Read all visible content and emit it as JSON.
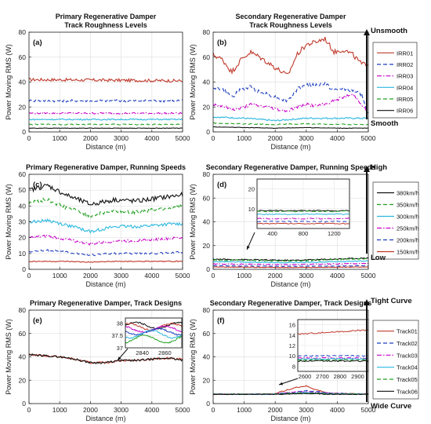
{
  "figure": {
    "ylabel": "Power Moving RMS (W)",
    "xlabel": "Distance (m)"
  },
  "chart_data": [
    {
      "type": "line",
      "panel_label": "(a)",
      "title": [
        "Primary Regenerative Damper",
        "Track Roughness Levels"
      ],
      "xlabel": "Distance (m)",
      "ylabel": "Power Moving RMS (W)",
      "xlim": [
        0,
        5000
      ],
      "ylim": [
        0,
        80
      ],
      "xticks": [
        0,
        1000,
        2000,
        3000,
        4000,
        5000
      ],
      "yticks": [
        0,
        20,
        40,
        60,
        80
      ],
      "grid": true,
      "series": [
        {
          "ref": "IRR01",
          "color": "#c0392b",
          "dash": "solid",
          "mean": 42,
          "jitter": 1.2,
          "x": [
            0,
            5000
          ],
          "y": [
            42,
            41
          ]
        },
        {
          "ref": "IRR02",
          "color": "#1f3fbf",
          "dash": "dash",
          "mean": 25,
          "jitter": 1.0,
          "x": [
            0,
            5000
          ],
          "y": [
            25,
            25
          ]
        },
        {
          "ref": "IRR03",
          "color": "#c800c8",
          "dash": "dashdot",
          "mean": 15,
          "jitter": 0.6,
          "x": [
            0,
            5000
          ],
          "y": [
            15,
            15
          ]
        },
        {
          "ref": "IRR04",
          "color": "#2ab7e0",
          "dash": "solid",
          "mean": 10,
          "jitter": 0.5,
          "x": [
            0,
            5000
          ],
          "y": [
            10,
            10
          ]
        },
        {
          "ref": "IRR05",
          "color": "#20a020",
          "dash": "dash",
          "mean": 6,
          "jitter": 0.4,
          "x": [
            0,
            5000
          ],
          "y": [
            6,
            6
          ]
        },
        {
          "ref": "IRR06",
          "color": "#111111",
          "dash": "solid",
          "mean": 3,
          "jitter": 0.2,
          "x": [
            0,
            5000
          ],
          "y": [
            3,
            3
          ]
        }
      ]
    },
    {
      "type": "line",
      "panel_label": "(b)",
      "title": [
        "Secondary Regenerative Damper",
        "Track Roughness Levels"
      ],
      "xlabel": "Distance (m)",
      "ylabel": "Power Moving RMS (W)",
      "xlim": [
        0,
        5000
      ],
      "ylim": [
        0,
        80
      ],
      "xticks": [
        0,
        1000,
        2000,
        3000,
        4000,
        5000
      ],
      "yticks": [
        0,
        20,
        40,
        60,
        80
      ],
      "grid": true,
      "series": [
        {
          "name": "IRR01",
          "color": "#c0392b",
          "dash": "solid",
          "jitter": 2.0,
          "x": [
            0,
            300,
            600,
            900,
            1200,
            1500,
            1800,
            2100,
            2400,
            2700,
            3000,
            3300,
            3600,
            3900,
            4200,
            4500,
            4800,
            5000
          ],
          "y": [
            62,
            58,
            48,
            58,
            64,
            60,
            55,
            50,
            45,
            62,
            70,
            72,
            75,
            64,
            66,
            62,
            54,
            55
          ]
        },
        {
          "name": "IRR02",
          "color": "#1f3fbf",
          "dash": "dash",
          "jitter": 1.5,
          "x": [
            0,
            300,
            600,
            900,
            1200,
            1500,
            1800,
            2100,
            2400,
            2700,
            3000,
            3300,
            3600,
            3900,
            4200,
            4500,
            4800,
            5000
          ],
          "y": [
            36,
            34,
            28,
            34,
            36,
            32,
            30,
            27,
            25,
            34,
            38,
            37,
            39,
            33,
            35,
            33,
            30,
            14
          ]
        },
        {
          "name": "IRR03",
          "color": "#c800c8",
          "dash": "dashdot",
          "jitter": 1.2,
          "x": [
            0,
            300,
            600,
            900,
            1200,
            1500,
            1800,
            2100,
            2400,
            2700,
            3000,
            3300,
            3600,
            3900,
            4200,
            4500,
            4800,
            5000
          ],
          "y": [
            22,
            21,
            18,
            19,
            22,
            21,
            20,
            18,
            17,
            20,
            22,
            21,
            22,
            25,
            28,
            30,
            22,
            14
          ]
        },
        {
          "name": "IRR04",
          "color": "#2ab7e0",
          "dash": "solid",
          "jitter": 0.6,
          "x": [
            0,
            1000,
            2000,
            3000,
            4000,
            5000
          ],
          "y": [
            12,
            11,
            9,
            11,
            11,
            11
          ]
        },
        {
          "name": "IRR05",
          "color": "#20a020",
          "dash": "dash",
          "jitter": 0.4,
          "x": [
            0,
            1000,
            2000,
            3000,
            4000,
            5000
          ],
          "y": [
            7,
            6.5,
            6,
            6.5,
            6,
            6
          ]
        },
        {
          "name": "IRR06",
          "color": "#111111",
          "dash": "solid",
          "jitter": 0.2,
          "x": [
            0,
            1000,
            2000,
            3000,
            4000,
            5000
          ],
          "y": [
            4,
            3.5,
            3,
            3.5,
            3,
            3
          ]
        }
      ],
      "scale_labels": {
        "top": "Unsmooth",
        "bottom": "Smooth"
      }
    },
    {
      "type": "line",
      "panel_label": "(c)",
      "title": [
        "Primary Regenerative Damper, Running Speeds"
      ],
      "xlabel": "Distance (m)",
      "ylabel": "Power Moving RMS (W)",
      "xlim": [
        0,
        5000
      ],
      "ylim": [
        0,
        60
      ],
      "xticks": [
        0,
        1000,
        2000,
        3000,
        4000,
        5000
      ],
      "yticks": [
        0,
        10,
        20,
        30,
        40,
        50,
        60
      ],
      "grid": true,
      "series": [
        {
          "ref": "380km/h",
          "color": "#111111",
          "dash": "solid",
          "jitter": 1.5,
          "x": [
            0,
            600,
            1200,
            2000,
            2800,
            3500,
            4200,
            5000
          ],
          "y": [
            50,
            53,
            47,
            41,
            44,
            43,
            45,
            47
          ]
        },
        {
          "ref": "350km/h",
          "color": "#20a020",
          "dash": "dash",
          "jitter": 1.3,
          "x": [
            0,
            600,
            1200,
            2000,
            2800,
            3500,
            4200,
            5000
          ],
          "y": [
            42,
            44,
            39,
            34,
            37,
            36,
            38,
            40
          ]
        },
        {
          "ref": "300km/h",
          "color": "#2ab7e0",
          "dash": "solid",
          "jitter": 1.0,
          "x": [
            0,
            600,
            1200,
            2000,
            2800,
            3500,
            4200,
            5000
          ],
          "y": [
            30,
            31,
            28,
            24,
            27,
            27,
            28,
            29
          ]
        },
        {
          "ref": "250km/h",
          "color": "#c800c8",
          "dash": "dashdot",
          "jitter": 0.8,
          "x": [
            0,
            600,
            1200,
            2000,
            2800,
            3500,
            4200,
            5000
          ],
          "y": [
            20,
            21,
            19,
            16,
            18,
            18,
            19,
            20
          ]
        },
        {
          "ref": "200km/h",
          "color": "#1f3fbf",
          "dash": "dash",
          "jitter": 0.6,
          "x": [
            0,
            600,
            1200,
            2000,
            2800,
            3500,
            4200,
            5000
          ],
          "y": [
            11,
            12,
            11,
            9,
            10,
            10,
            10,
            11
          ]
        },
        {
          "ref": "150km/h",
          "color": "#c0392b",
          "dash": "solid",
          "jitter": 0.3,
          "x": [
            0,
            600,
            1200,
            2000,
            2800,
            3500,
            4200,
            5000
          ],
          "y": [
            5,
            5,
            5,
            4.5,
            5,
            5,
            5,
            5
          ]
        }
      ]
    },
    {
      "type": "line",
      "panel_label": "(d)",
      "title": [
        "Secondary Regenerative Damper, Running Speeds"
      ],
      "xlabel": "Distance (m)",
      "ylabel": "Power Moving RMS (W)",
      "xlim": [
        0,
        5000
      ],
      "ylim": [
        0,
        80
      ],
      "xticks": [
        0,
        1000,
        2000,
        3000,
        4000,
        5000
      ],
      "yticks": [
        0,
        20,
        40,
        60,
        80
      ],
      "grid": true,
      "series": [
        {
          "name": "380km/h",
          "color": "#111111",
          "dash": "solid",
          "jitter": 0.5,
          "x": [
            0,
            2500,
            5000
          ],
          "y": [
            8.5,
            7.5,
            9.5
          ]
        },
        {
          "name": "350km/h",
          "color": "#20a020",
          "dash": "dash",
          "jitter": 0.5,
          "x": [
            0,
            2500,
            5000
          ],
          "y": [
            8,
            7,
            9
          ]
        },
        {
          "name": "300km/h",
          "color": "#2ab7e0",
          "dash": "solid",
          "jitter": 0.4,
          "x": [
            0,
            2500,
            5000
          ],
          "y": [
            6.5,
            5.5,
            7
          ]
        },
        {
          "name": "250km/h",
          "color": "#c800c8",
          "dash": "dashdot",
          "jitter": 0.3,
          "x": [
            0,
            2500,
            5000
          ],
          "y": [
            4.5,
            4,
            5
          ]
        },
        {
          "name": "200km/h",
          "color": "#1f3fbf",
          "dash": "dash",
          "jitter": 0.2,
          "x": [
            0,
            2500,
            5000
          ],
          "y": [
            3,
            2.5,
            3
          ]
        },
        {
          "name": "150km/h",
          "color": "#c0392b",
          "dash": "solid",
          "jitter": 0.2,
          "x": [
            0,
            2500,
            5000
          ],
          "y": [
            2,
            1.5,
            2
          ]
        }
      ],
      "inset": {
        "xlim": [
          200,
          1400
        ],
        "ylim": [
          0,
          25
        ],
        "xticks": [
          400,
          800,
          1200
        ],
        "yticks": [
          10,
          20
        ],
        "series_y": [
          9,
          8.7,
          7.2,
          5,
          3.5,
          2.5
        ]
      },
      "scale_labels": {
        "top": "High",
        "bottom": "Low"
      }
    },
    {
      "type": "line",
      "panel_label": "(e)",
      "title": [
        "Primary Regenerative Damper, Track Designs"
      ],
      "xlabel": "Distance (m)",
      "ylabel": "Power Moving RMS (W)",
      "xlim": [
        0,
        5000
      ],
      "ylim": [
        0,
        80
      ],
      "xticks": [
        0,
        1000,
        2000,
        3000,
        4000,
        5000
      ],
      "yticks": [
        0,
        20,
        40,
        60,
        80
      ],
      "grid": true,
      "series": [
        {
          "ref": "Track01",
          "color": "#c0392b",
          "dash": "solid",
          "jitter": 0.8,
          "x": [
            0,
            500,
            1000,
            1500,
            2000,
            2500,
            3000,
            3500,
            4000,
            4500,
            5000
          ],
          "y": [
            42,
            41,
            40,
            38,
            35,
            35,
            37,
            37,
            38,
            39,
            38
          ]
        },
        {
          "ref": "Track06",
          "color": "#111111",
          "dash": "solid",
          "jitter": 0.8,
          "x": [
            0,
            500,
            1000,
            1500,
            2000,
            2500,
            3000,
            3500,
            4000,
            4500,
            5000
          ],
          "y": [
            42,
            41,
            40,
            38,
            35,
            35,
            37,
            37,
            38,
            39,
            37
          ]
        }
      ],
      "inset": {
        "xlim": [
          2825,
          2875
        ],
        "ylim": [
          37,
          38.2
        ],
        "xticks": [
          2840,
          2860
        ],
        "yticks": [
          37,
          37.5,
          38
        ],
        "series": [
          {
            "color": "#111111",
            "base": 37.9,
            "amp": 0.12
          },
          {
            "color": "#c0392b",
            "base": 37.85,
            "amp": 0.12
          },
          {
            "color": "#c800c8",
            "base": 37.75,
            "amp": 0.12
          },
          {
            "color": "#1f3fbf",
            "base": 37.65,
            "amp": 0.12
          },
          {
            "color": "#2ab7e0",
            "base": 37.55,
            "amp": 0.15
          },
          {
            "color": "#20a020",
            "base": 37.35,
            "amp": 0.15
          }
        ]
      }
    },
    {
      "type": "line",
      "panel_label": "(f)",
      "title": [
        "Secondary Regenerative Damper, Track Designs"
      ],
      "xlabel": "Distance (m)",
      "ylabel": "Power Moving RMS (W)",
      "xlim": [
        0,
        5000
      ],
      "ylim": [
        0,
        80
      ],
      "xticks": [
        0,
        1000,
        2000,
        3000,
        4000,
        5000
      ],
      "yticks": [
        0,
        20,
        40,
        60,
        80
      ],
      "grid": true,
      "series": [
        {
          "name": "Track01",
          "color": "#c0392b",
          "dash": "solid",
          "jitter": 0.4,
          "x": [
            0,
            1900,
            2300,
            2700,
            3000,
            3300,
            3700,
            5000
          ],
          "y": [
            8,
            8,
            11,
            14,
            15,
            12,
            9,
            8
          ]
        },
        {
          "name": "Track02",
          "color": "#1f3fbf",
          "dash": "dash",
          "jitter": 0.3,
          "x": [
            0,
            1900,
            2300,
            2700,
            3000,
            3300,
            3700,
            5000
          ],
          "y": [
            8,
            8,
            9,
            10,
            11,
            10.5,
            9,
            8
          ]
        },
        {
          "name": "Track03",
          "color": "#c800c8",
          "dash": "dashdot",
          "jitter": 0.3,
          "x": [
            0,
            1900,
            2300,
            2700,
            3000,
            3300,
            3700,
            5000
          ],
          "y": [
            8,
            8,
            9,
            10,
            10,
            9.5,
            9,
            8
          ]
        },
        {
          "name": "Track04",
          "color": "#2ab7e0",
          "dash": "solid",
          "jitter": 0.3,
          "x": [
            0,
            1900,
            2300,
            2700,
            3000,
            3300,
            3700,
            5000
          ],
          "y": [
            8,
            8,
            8.5,
            9,
            9.5,
            9,
            8.5,
            8
          ]
        },
        {
          "name": "Track05",
          "color": "#20a020",
          "dash": "dash",
          "jitter": 0.3,
          "x": [
            0,
            1900,
            2300,
            2700,
            3000,
            3300,
            3700,
            5000
          ],
          "y": [
            8,
            8,
            8.5,
            9,
            9,
            9,
            8.5,
            8
          ]
        },
        {
          "name": "Track06",
          "color": "#111111",
          "dash": "solid",
          "jitter": 0.3,
          "x": [
            0,
            1900,
            2300,
            2700,
            3000,
            3300,
            3700,
            5000
          ],
          "y": [
            8,
            8,
            8,
            8.5,
            8.5,
            8.5,
            8,
            8
          ]
        }
      ],
      "inset": {
        "xlim": [
          2560,
          2960
        ],
        "ylim": [
          7,
          17
        ],
        "xticks": [
          2600,
          2700,
          2800,
          2900
        ],
        "yticks": [
          8,
          10,
          12,
          14,
          16
        ],
        "series_y": [
          14.2,
          10,
          9.6,
          9.4,
          9.2,
          9
        ]
      },
      "scale_labels": {
        "top": "Tight Curve",
        "bottom": "Wide Curve"
      }
    }
  ]
}
